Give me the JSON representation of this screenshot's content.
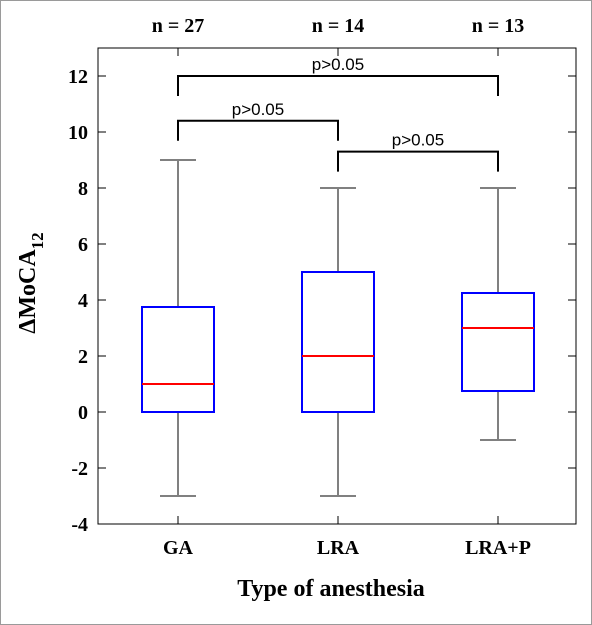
{
  "chart_data": {
    "type": "boxplot",
    "xlabel": "Type of anesthesia",
    "ylabel_main": "ΔMoCA",
    "ylabel_sub": "12",
    "ylim": [
      -4,
      13
    ],
    "yticks": [
      -4,
      -2,
      0,
      2,
      4,
      6,
      8,
      10,
      12
    ],
    "grid": false,
    "categories": [
      "GA",
      "LRA",
      "LRA+P"
    ],
    "counts": [
      "n = 27",
      "n = 14",
      "n = 13"
    ],
    "boxes": [
      {
        "category": "GA",
        "whisker_low": -3,
        "q1": 0,
        "median": 1,
        "q3": 3.75,
        "whisker_high": 9
      },
      {
        "category": "LRA",
        "whisker_low": -3,
        "q1": 0,
        "median": 2,
        "q3": 5,
        "whisker_high": 8
      },
      {
        "category": "LRA+P",
        "whisker_low": -1,
        "q1": 0.75,
        "median": 3,
        "q3": 4.25,
        "whisker_high": 8
      }
    ],
    "comparisons": [
      {
        "from": "GA",
        "to": "LRA+P",
        "label": "p>0.05",
        "level": 12
      },
      {
        "from": "GA",
        "to": "LRA",
        "label": "p>0.05",
        "level": 10.4
      },
      {
        "from": "LRA",
        "to": "LRA+P",
        "label": "p>0.05",
        "level": 9.3
      }
    ],
    "colors": {
      "box": "#0000ff",
      "median": "#ff0000",
      "whisker": "#808080",
      "bracket": "#000000"
    }
  }
}
